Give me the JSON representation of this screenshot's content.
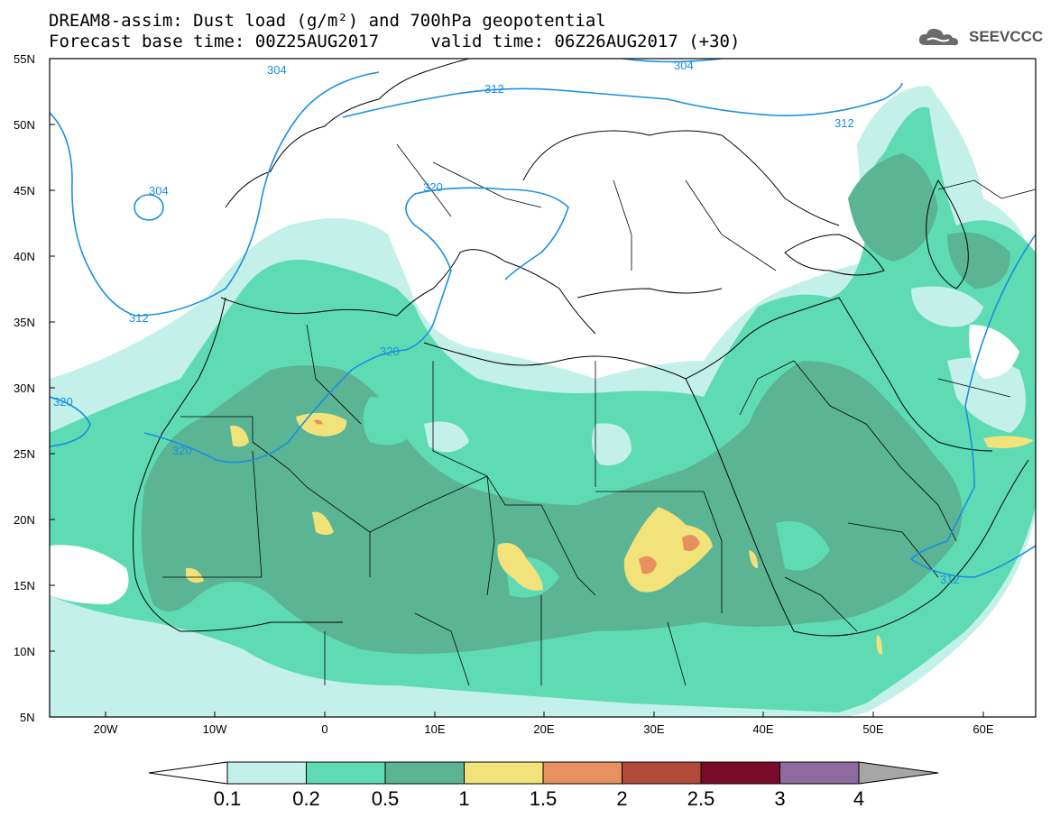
{
  "header": {
    "line1": "DREAM8-assim: Dust load (g/m²) and 700hPa geopotential",
    "line2": "Forecast base time: 00Z25AUG2017     valid time: 06Z26AUG2017 (+30)"
  },
  "logo": {
    "text": "SEEVCCC",
    "icon": "cloud-logo-icon"
  },
  "map": {
    "lat_labels": [
      "55N",
      "50N",
      "45N",
      "40N",
      "35N",
      "30N",
      "25N",
      "20N",
      "15N",
      "10N",
      "5N"
    ],
    "lon_labels": [
      "20W",
      "10W",
      "0",
      "10E",
      "20E",
      "30E",
      "40E",
      "50E",
      "60E"
    ],
    "contour_labels": [
      "304",
      "304",
      "304",
      "312",
      "312",
      "312",
      "312",
      "320",
      "320",
      "320",
      "320"
    ]
  },
  "colorbar": {
    "labels": [
      "0.1",
      "0.2",
      "0.5",
      "1",
      "1.5",
      "2",
      "2.5",
      "3",
      "4"
    ],
    "colors": [
      "#ffffff",
      "#c3f0e8",
      "#5fdbb4",
      "#5bb594",
      "#f2e27a",
      "#e89160",
      "#b04a3a",
      "#7a0a2a",
      "#8e6aa0",
      "#a6a6a6"
    ]
  },
  "colors": {
    "dust_01": "#c3f0e8",
    "dust_02": "#5fdbb4",
    "dust_05": "#5bb594",
    "dust_1": "#f2e27a",
    "dust_15": "#e89160",
    "contour": "#1a8fe0"
  }
}
